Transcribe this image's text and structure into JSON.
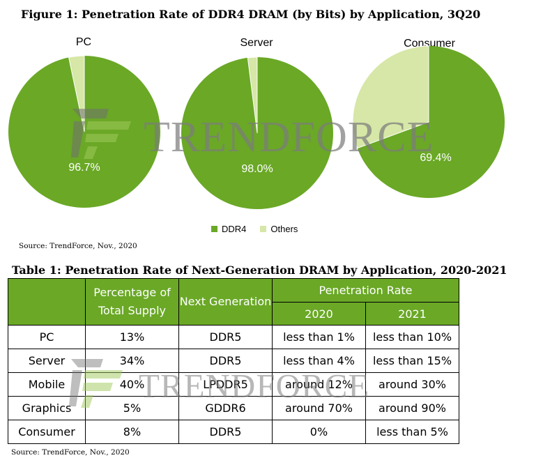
{
  "figure": {
    "title": "Figure 1: Penetration Rate of DDR4 DRAM (by Bits) by Application, 3Q20",
    "source": "Source: TrendForce, Nov., 2020"
  },
  "colors": {
    "ddr4": "#6aa826",
    "others": "#d6e7a7",
    "table_header": "#6aa826"
  },
  "watermark": {
    "text": "TRENDFORCE"
  },
  "legend": {
    "items": [
      "DDR4",
      "Others"
    ]
  },
  "chart_data": [
    {
      "type": "pie",
      "title": "PC",
      "labels": [
        "DDR4",
        "Others"
      ],
      "values": [
        96.7,
        3.3
      ],
      "data_label": "96.7%"
    },
    {
      "type": "pie",
      "title": "Server",
      "labels": [
        "DDR4",
        "Others"
      ],
      "values": [
        98.0,
        2.0
      ],
      "data_label": "98.0%"
    },
    {
      "type": "pie",
      "title": "Consumer",
      "labels": [
        "DDR4",
        "Others"
      ],
      "values": [
        69.4,
        30.6
      ],
      "data_label": "69.4%"
    },
    {
      "type": "table",
      "title": "Table 1: Penetration Rate of Next-Generation DRAM by Application, 2020-2021",
      "header": {
        "pct": "Percentage of Total Supply",
        "next": "Next Generation",
        "rate": "Penetration Rate",
        "y2020": "2020",
        "y2021": "2021"
      },
      "rows": [
        {
          "app": "PC",
          "pct": "13%",
          "next": "DDR5",
          "y2020": "less than 1%",
          "y2021": "less than 10%"
        },
        {
          "app": "Server",
          "pct": "34%",
          "next": "DDR5",
          "y2020": "less than 4%",
          "y2021": "less than 15%"
        },
        {
          "app": "Mobile",
          "pct": "40%",
          "next": "LPDDR5",
          "y2020": "around 12%",
          "y2021": "around 30%"
        },
        {
          "app": "Graphics",
          "pct": "5%",
          "next": "GDDR6",
          "y2020": "around 70%",
          "y2021": "around 90%"
        },
        {
          "app": "Consumer",
          "pct": "8%",
          "next": "DDR5",
          "y2020": "0%",
          "y2021": "less than 5%"
        }
      ],
      "source": "Source: TrendForce, Nov., 2020"
    }
  ]
}
